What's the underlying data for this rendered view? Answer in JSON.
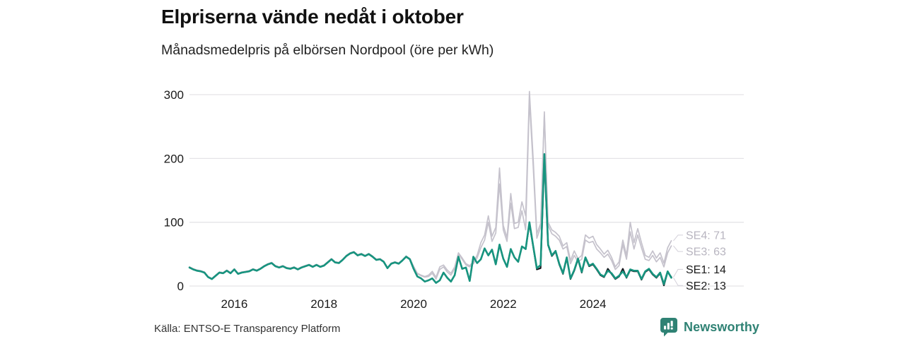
{
  "header": {
    "title": "Elpriserna vände nedåt i oktober",
    "subtitle": "Månadsmedelpris på elbörsen Nordpool (öre per kWh)"
  },
  "footer": {
    "source": "Källa: ENTSO-E Transparency Platform",
    "brand": "Newsworthy",
    "brand_color": "#2f8274"
  },
  "chart_data": {
    "type": "line",
    "title": "Elpriserna vände nedåt i oktober",
    "subtitle": "Månadsmedelpris på elbörsen Nordpool (öre per kWh)",
    "unit": "öre per kWh",
    "x_range": {
      "start_year": 2015,
      "start_month": 1,
      "end_year": 2025,
      "end_month": 10,
      "points_per_year": 12
    },
    "x_ticks": [
      2016,
      2018,
      2020,
      2022,
      2024
    ],
    "y_ticks": [
      0,
      100,
      200,
      300
    ],
    "ylim": [
      0,
      310
    ],
    "grid": "horizontal",
    "legend_position": "end-of-line-labels-right",
    "style": {
      "grid_color": "#e5e4e8",
      "tick_color": "#1a1a1a",
      "leader_color": "#d4d1da",
      "gray_label_color": "#b8b5c0",
      "dark_label_color": "#1a1a1a"
    },
    "series": [
      {
        "name": "SE4",
        "end_label": "SE4: 71",
        "end_value": 71,
        "color": "#c5c2cc",
        "label_color": "#b8b5c0",
        "width": 1.7,
        "label_dy": -8,
        "values": [
          30,
          27,
          25,
          24,
          22,
          15,
          12,
          17,
          22,
          21,
          25,
          21,
          27,
          20,
          22,
          23,
          24,
          27,
          25,
          28,
          32,
          35,
          37,
          32,
          30,
          32,
          29,
          28,
          30,
          27,
          30,
          32,
          34,
          31,
          34,
          31,
          33,
          38,
          43,
          38,
          37,
          42,
          48,
          52,
          54,
          49,
          51,
          48,
          51,
          47,
          42,
          43,
          39,
          29,
          36,
          38,
          36,
          41,
          47,
          43,
          31,
          20,
          17,
          15,
          17,
          23,
          14,
          30,
          33,
          25,
          20,
          30,
          52,
          44,
          35,
          32,
          38,
          48,
          68,
          80,
          110,
          78,
          92,
          185,
          95,
          76,
          145,
          98,
          100,
          132,
          110,
          305,
          200,
          82,
          98,
          268,
          100,
          88,
          84,
          78,
          63,
          68,
          40,
          55,
          43,
          48,
          80,
          75,
          78,
          65,
          58,
          50,
          56,
          45,
          30,
          38,
          72,
          48,
          100,
          68,
          90,
          68,
          48,
          45,
          55,
          44,
          52,
          36,
          60,
          71
        ]
      },
      {
        "name": "SE3",
        "end_label": "SE3: 63",
        "end_value": 63,
        "color": "#c5c2cc",
        "label_color": "#b8b5c0",
        "width": 1.7,
        "label_dy": 8,
        "values": [
          30,
          27,
          25,
          24,
          22,
          15,
          12,
          17,
          22,
          21,
          25,
          21,
          27,
          20,
          22,
          23,
          24,
          27,
          25,
          28,
          32,
          35,
          37,
          32,
          30,
          32,
          29,
          28,
          30,
          27,
          30,
          32,
          34,
          31,
          34,
          31,
          33,
          38,
          43,
          38,
          37,
          42,
          48,
          52,
          54,
          49,
          51,
          48,
          51,
          47,
          42,
          43,
          39,
          29,
          36,
          38,
          36,
          41,
          47,
          43,
          30,
          19,
          16,
          14,
          15,
          20,
          11,
          26,
          30,
          22,
          17,
          27,
          50,
          42,
          33,
          30,
          35,
          44,
          60,
          72,
          100,
          70,
          83,
          160,
          88,
          70,
          130,
          90,
          92,
          118,
          88,
          292,
          188,
          75,
          92,
          273,
          95,
          82,
          78,
          72,
          58,
          62,
          35,
          48,
          38,
          42,
          72,
          68,
          70,
          58,
          52,
          45,
          50,
          40,
          26,
          32,
          65,
          42,
          85,
          58,
          80,
          60,
          42,
          40,
          48,
          38,
          45,
          30,
          52,
          63
        ]
      },
      {
        "name": "SE1",
        "end_label": "SE1: 14",
        "end_value": 14,
        "color": "#14171c",
        "label_color": "#1a1a1a",
        "width": 2.2,
        "label_dy": -11,
        "values": [
          29,
          26,
          24,
          23,
          21,
          14,
          11,
          16,
          21,
          20,
          24,
          20,
          26,
          19,
          21,
          22,
          23,
          26,
          24,
          27,
          31,
          34,
          36,
          31,
          29,
          31,
          28,
          27,
          29,
          26,
          29,
          31,
          33,
          30,
          33,
          30,
          32,
          37,
          42,
          37,
          36,
          41,
          47,
          51,
          53,
          48,
          50,
          47,
          50,
          46,
          41,
          42,
          38,
          28,
          35,
          37,
          35,
          40,
          46,
          42,
          27,
          15,
          12,
          7,
          9,
          12,
          5,
          9,
          21,
          13,
          7,
          17,
          46,
          27,
          29,
          8,
          46,
          36,
          42,
          59,
          48,
          57,
          34,
          64,
          43,
          30,
          58,
          45,
          38,
          62,
          58,
          98,
          62,
          26,
          28,
          203,
          64,
          47,
          54,
          34,
          19,
          44,
          11,
          24,
          42,
          21,
          44,
          31,
          34,
          26,
          17,
          14,
          27,
          19,
          11,
          15,
          27,
          13,
          25,
          23,
          23,
          10,
          22,
          26,
          18,
          13,
          20,
          1,
          22,
          14
        ]
      },
      {
        "name": "SE2",
        "end_label": "SE2: 13",
        "end_value": 13,
        "color": "#17947f",
        "label_color": "#1a1a1a",
        "width": 2.6,
        "label_dy": 11,
        "values": [
          29,
          26,
          24,
          23,
          21,
          14,
          11,
          16,
          21,
          20,
          24,
          20,
          26,
          19,
          21,
          22,
          23,
          26,
          24,
          27,
          31,
          34,
          36,
          31,
          29,
          31,
          28,
          27,
          29,
          26,
          29,
          31,
          33,
          30,
          33,
          30,
          32,
          37,
          42,
          37,
          36,
          41,
          47,
          51,
          53,
          48,
          50,
          47,
          50,
          46,
          41,
          42,
          38,
          28,
          35,
          37,
          35,
          40,
          46,
          42,
          27,
          15,
          12,
          7,
          9,
          12,
          5,
          9,
          21,
          13,
          7,
          17,
          46,
          27,
          29,
          8,
          46,
          36,
          42,
          59,
          48,
          57,
          34,
          65,
          43,
          30,
          58,
          45,
          38,
          62,
          58,
          100,
          63,
          28,
          33,
          207,
          65,
          48,
          55,
          35,
          20,
          45,
          12,
          25,
          43,
          22,
          45,
          32,
          35,
          27,
          18,
          15,
          24,
          20,
          12,
          16,
          23,
          14,
          26,
          24,
          24,
          11,
          23,
          27,
          19,
          14,
          21,
          3,
          23,
          13
        ]
      }
    ]
  }
}
